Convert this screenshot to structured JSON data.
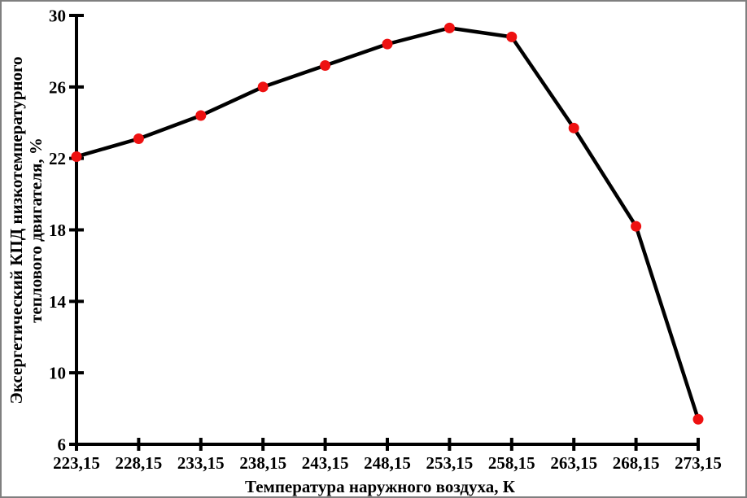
{
  "colors": {
    "background": "#ffffff",
    "frame_border": "#7f7f7f",
    "axis": "#000000",
    "line": "#000000",
    "marker": "#ee1111",
    "text": "#000000"
  },
  "chart_data": {
    "type": "line",
    "title": "",
    "categories": [
      "223,15",
      "228,15",
      "233,15",
      "238,15",
      "243,15",
      "248,15",
      "253,15",
      "258,15",
      "263,15",
      "268,15",
      "273,15"
    ],
    "x_values": [
      223.15,
      228.15,
      233.15,
      238.15,
      243.15,
      248.15,
      253.15,
      258.15,
      263.15,
      268.15,
      273.15
    ],
    "values": [
      22.1,
      23.1,
      24.4,
      26.0,
      27.2,
      28.4,
      29.3,
      28.8,
      23.7,
      18.2,
      7.4
    ],
    "xlabel": "Температура наружного воздуха, К",
    "ylabel": "Эксергетический КПД низкотемпературного теплового двигателя, %",
    "ylabel_lines": [
      "Эксергетический КПД низкотемпературного",
      "теплового двигателя, %"
    ],
    "ylim": [
      6,
      30
    ],
    "yticks": [
      6,
      10,
      14,
      18,
      22,
      26,
      30
    ],
    "decimal_separator": ",",
    "grid": false,
    "legend": false,
    "marker_shape": "circle"
  }
}
